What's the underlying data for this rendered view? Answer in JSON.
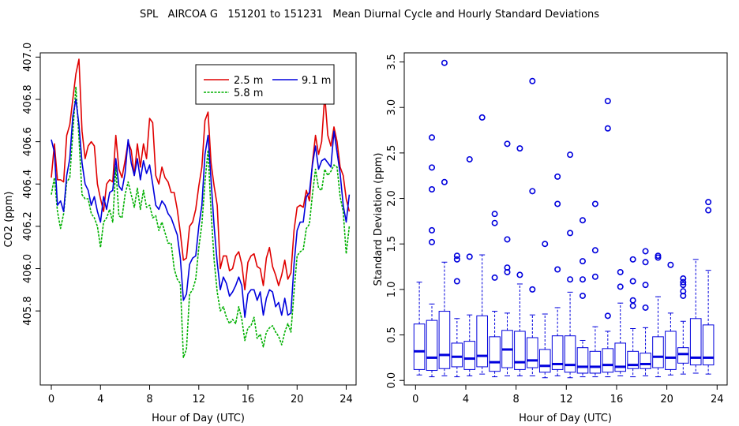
{
  "chart_data": [
    {
      "type": "line",
      "title": "SPL   AIRCOA G   151201 to 151231   Mean Diurnal Cycle and Hourly Standard Deviations",
      "xlabel": "Hour of Day (UTC)",
      "ylabel": "CO2 (ppm)",
      "xlim": [
        -0.9,
        24.8
      ],
      "ylim": [
        405.45,
        407.02
      ],
      "xticks": [
        0,
        4,
        8,
        12,
        16,
        20,
        24
      ],
      "xtick_labels": [
        "0",
        "4",
        "8",
        "12",
        "16",
        "20",
        "24"
      ],
      "yticks": [
        405.8,
        406.0,
        406.2,
        406.4,
        406.6,
        406.8,
        407.0
      ],
      "ytick_labels": [
        "405.8",
        "406.0",
        "406.2",
        "406.4",
        "406.6",
        "406.8",
        "407.0"
      ],
      "legend_position": "top-right",
      "x_step": 0.25,
      "series": [
        {
          "name": "2.5 m",
          "color": "#e00000",
          "values": [
            406.43,
            406.59,
            406.42,
            406.42,
            406.41,
            406.63,
            406.68,
            406.8,
            406.92,
            406.99,
            406.65,
            406.52,
            406.58,
            406.6,
            406.58,
            406.4,
            406.33,
            406.27,
            406.4,
            406.42,
            406.41,
            406.63,
            406.47,
            406.43,
            406.51,
            406.6,
            406.56,
            406.44,
            406.59,
            406.48,
            406.59,
            406.52,
            406.71,
            406.69,
            406.44,
            406.4,
            406.48,
            406.43,
            406.41,
            406.36,
            406.36,
            406.28,
            406.17,
            406.04,
            406.05,
            406.2,
            406.22,
            406.28,
            406.39,
            406.48,
            406.7,
            406.74,
            406.5,
            406.39,
            406.3,
            406.0,
            406.06,
            406.06,
            405.99,
            406.0,
            406.06,
            406.08,
            406.02,
            405.9,
            406.03,
            406.06,
            406.07,
            406.01,
            406.0,
            405.92,
            406.05,
            406.1,
            406.01,
            405.97,
            405.92,
            405.97,
            406.04,
            405.95,
            405.98,
            406.18,
            406.29,
            406.3,
            406.29,
            406.37,
            406.32,
            406.5,
            406.63,
            406.54,
            406.6,
            406.82,
            406.63,
            406.58,
            406.67,
            406.6,
            406.48,
            406.44,
            406.33,
            406.27
          ]
        },
        {
          "name": "9.1 m",
          "color": "#0000dd",
          "values": [
            406.61,
            406.55,
            406.3,
            406.32,
            406.27,
            406.44,
            406.52,
            406.72,
            406.8,
            406.68,
            406.5,
            406.4,
            406.37,
            406.3,
            406.34,
            406.27,
            406.22,
            406.34,
            406.28,
            406.36,
            406.37,
            406.52,
            406.39,
            406.37,
            406.45,
            406.61,
            406.5,
            406.44,
            406.52,
            406.42,
            406.51,
            406.45,
            406.49,
            406.4,
            406.3,
            406.28,
            406.32,
            406.3,
            406.26,
            406.24,
            406.2,
            406.16,
            406.05,
            405.85,
            405.88,
            406.02,
            406.05,
            406.06,
            406.2,
            406.3,
            406.54,
            406.63,
            406.42,
            406.2,
            406.03,
            405.9,
            405.96,
            405.93,
            405.87,
            405.89,
            405.92,
            405.96,
            405.92,
            405.77,
            405.88,
            405.9,
            405.9,
            405.85,
            405.89,
            405.78,
            405.86,
            405.9,
            405.89,
            405.82,
            405.84,
            405.78,
            405.86,
            405.78,
            405.79,
            406.02,
            406.18,
            406.22,
            406.22,
            406.34,
            406.36,
            406.49,
            406.58,
            406.47,
            406.51,
            406.52,
            406.5,
            406.48,
            406.65,
            406.55,
            406.45,
            406.3,
            406.22,
            406.35
          ]
        },
        {
          "name": "5.8 m",
          "color": "#00b000",
          "values": [
            406.35,
            406.43,
            406.27,
            406.19,
            406.26,
            406.41,
            406.43,
            406.64,
            406.86,
            406.62,
            406.35,
            406.33,
            406.33,
            406.26,
            406.24,
            406.2,
            406.1,
            406.22,
            406.24,
            406.28,
            406.22,
            406.48,
            406.25,
            406.24,
            406.35,
            406.41,
            406.35,
            406.29,
            406.38,
            406.28,
            406.37,
            406.29,
            406.3,
            406.24,
            406.25,
            406.18,
            406.22,
            406.17,
            406.12,
            406.12,
            406.0,
            405.95,
            405.93,
            405.58,
            405.62,
            405.88,
            405.9,
            405.95,
            406.1,
            406.21,
            406.41,
            406.56,
            406.27,
            406.04,
            405.89,
            405.8,
            405.82,
            405.77,
            405.74,
            405.76,
            405.74,
            405.82,
            405.76,
            405.66,
            405.72,
            405.73,
            405.77,
            405.67,
            405.69,
            405.63,
            405.7,
            405.72,
            405.73,
            405.7,
            405.68,
            405.64,
            405.7,
            405.74,
            405.7,
            405.89,
            406.06,
            406.08,
            406.09,
            406.19,
            406.21,
            406.35,
            406.47,
            406.38,
            406.37,
            406.47,
            406.44,
            406.46,
            406.49,
            406.48,
            406.34,
            406.27,
            406.07,
            406.2
          ]
        }
      ]
    },
    {
      "type": "box",
      "xlabel": "Hour of Day (UTC)",
      "ylabel": "Standard Deviation (ppm)",
      "xlim": [
        -0.9,
        24.8
      ],
      "ylim": [
        -0.05,
        3.6
      ],
      "xticks": [
        0,
        4,
        8,
        12,
        16,
        20,
        24
      ],
      "xtick_labels": [
        "0",
        "4",
        "8",
        "12",
        "16",
        "20",
        "24"
      ],
      "yticks": [
        0.0,
        0.5,
        1.0,
        1.5,
        2.0,
        2.5,
        3.0,
        3.5
      ],
      "ytick_labels": [
        "0.0",
        "0.5",
        "1.0",
        "1.5",
        "2.0",
        "2.5",
        "3.0",
        "3.5"
      ],
      "box_color": "#0000dd",
      "boxes": [
        {
          "x": 0.3,
          "low": 0.06,
          "q1": 0.12,
          "median": 0.32,
          "q3": 0.62,
          "high": 1.08,
          "outliers": []
        },
        {
          "x": 1.3,
          "low": 0.04,
          "q1": 0.11,
          "median": 0.25,
          "q3": 0.66,
          "high": 0.84,
          "outliers": [
            1.52,
            1.65,
            2.1,
            2.34,
            2.67
          ]
        },
        {
          "x": 2.3,
          "low": 0.05,
          "q1": 0.13,
          "median": 0.28,
          "q3": 0.76,
          "high": 1.3,
          "outliers": [
            2.18,
            3.49
          ]
        },
        {
          "x": 3.3,
          "low": 0.04,
          "q1": 0.15,
          "median": 0.26,
          "q3": 0.41,
          "high": 0.68,
          "outliers": [
            1.09,
            1.33,
            1.37
          ]
        },
        {
          "x": 4.3,
          "low": 0.05,
          "q1": 0.12,
          "median": 0.24,
          "q3": 0.43,
          "high": 0.72,
          "outliers": [
            1.36,
            2.43
          ]
        },
        {
          "x": 5.3,
          "low": 0.07,
          "q1": 0.15,
          "median": 0.27,
          "q3": 0.71,
          "high": 1.38,
          "outliers": [
            2.89
          ]
        },
        {
          "x": 6.3,
          "low": 0.04,
          "q1": 0.1,
          "median": 0.2,
          "q3": 0.48,
          "high": 0.76,
          "outliers": [
            1.13,
            1.73,
            1.83
          ]
        },
        {
          "x": 7.3,
          "low": 0.05,
          "q1": 0.14,
          "median": 0.34,
          "q3": 0.55,
          "high": 0.74,
          "outliers": [
            1.19,
            1.24,
            1.55,
            2.6
          ]
        },
        {
          "x": 8.3,
          "low": 0.05,
          "q1": 0.12,
          "median": 0.2,
          "q3": 0.54,
          "high": 1.06,
          "outliers": [
            1.16,
            2.55
          ]
        },
        {
          "x": 9.3,
          "low": 0.05,
          "q1": 0.14,
          "median": 0.22,
          "q3": 0.47,
          "high": 0.72,
          "outliers": [
            1.0,
            2.08,
            3.29
          ]
        },
        {
          "x": 10.3,
          "low": 0.03,
          "q1": 0.09,
          "median": 0.16,
          "q3": 0.34,
          "high": 0.73,
          "outliers": [
            1.5
          ]
        },
        {
          "x": 11.3,
          "low": 0.05,
          "q1": 0.12,
          "median": 0.18,
          "q3": 0.49,
          "high": 0.8,
          "outliers": [
            1.22,
            1.94,
            2.24
          ]
        },
        {
          "x": 12.3,
          "low": 0.03,
          "q1": 0.09,
          "median": 0.17,
          "q3": 0.49,
          "high": 0.97,
          "outliers": [
            1.11,
            1.62,
            2.48
          ]
        },
        {
          "x": 13.3,
          "low": 0.04,
          "q1": 0.08,
          "median": 0.15,
          "q3": 0.36,
          "high": 0.44,
          "outliers": [
            0.93,
            1.11,
            1.31,
            1.76
          ]
        },
        {
          "x": 14.3,
          "low": 0.04,
          "q1": 0.08,
          "median": 0.15,
          "q3": 0.32,
          "high": 0.59,
          "outliers": [
            1.14,
            1.43,
            1.94
          ]
        },
        {
          "x": 15.3,
          "low": 0.04,
          "q1": 0.09,
          "median": 0.17,
          "q3": 0.35,
          "high": 0.54,
          "outliers": [
            0.71,
            2.77,
            3.07
          ]
        },
        {
          "x": 16.3,
          "low": 0.05,
          "q1": 0.1,
          "median": 0.15,
          "q3": 0.41,
          "high": 0.85,
          "outliers": [
            1.03,
            1.19
          ]
        },
        {
          "x": 17.3,
          "low": 0.04,
          "q1": 0.13,
          "median": 0.17,
          "q3": 0.32,
          "high": 0.57,
          "outliers": [
            0.82,
            0.88,
            1.09,
            1.33
          ]
        },
        {
          "x": 18.3,
          "low": 0.05,
          "q1": 0.13,
          "median": 0.18,
          "q3": 0.3,
          "high": 0.58,
          "outliers": [
            0.8,
            1.05,
            1.3,
            1.42
          ]
        },
        {
          "x": 19.3,
          "low": 0.04,
          "q1": 0.14,
          "median": 0.26,
          "q3": 0.48,
          "high": 0.92,
          "outliers": [
            1.35,
            1.37
          ]
        },
        {
          "x": 20.3,
          "low": 0.06,
          "q1": 0.12,
          "median": 0.25,
          "q3": 0.54,
          "high": 0.74,
          "outliers": [
            1.27
          ]
        },
        {
          "x": 21.3,
          "low": 0.07,
          "q1": 0.19,
          "median": 0.29,
          "q3": 0.36,
          "high": 0.65,
          "outliers": [
            0.93,
            0.98,
            1.05,
            1.08,
            1.12
          ]
        },
        {
          "x": 22.3,
          "low": 0.08,
          "q1": 0.17,
          "median": 0.25,
          "q3": 0.68,
          "high": 1.33,
          "outliers": []
        },
        {
          "x": 23.3,
          "low": 0.07,
          "q1": 0.17,
          "median": 0.25,
          "q3": 0.61,
          "high": 1.21,
          "outliers": [
            1.87,
            1.96
          ]
        }
      ]
    }
  ]
}
